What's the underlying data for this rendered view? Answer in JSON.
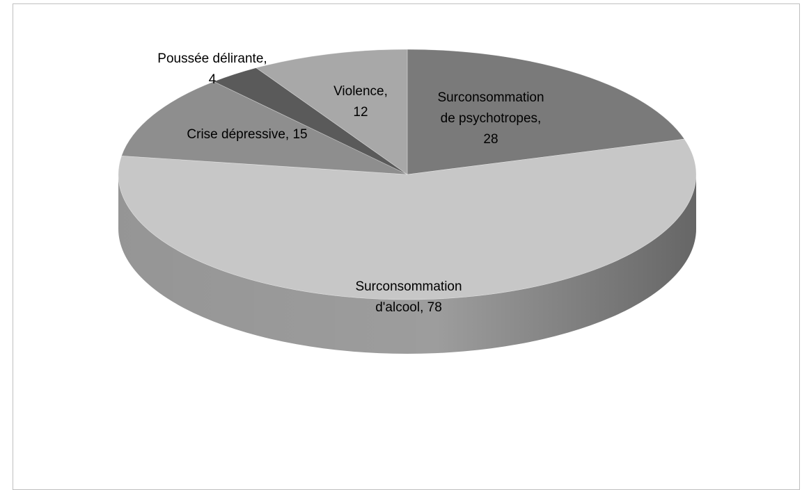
{
  "chart_data": {
    "type": "pie",
    "style": "3d",
    "title": "",
    "categories": [
      "Surconsommation de psychotropes",
      "Surconsommation d'alcool",
      "Crise dépressive",
      "Poussée délirante",
      "Violence"
    ],
    "values": [
      28,
      78,
      15,
      4,
      12
    ],
    "labels": [
      [
        "Surconsommation",
        "de psychotropes,",
        "28"
      ],
      [
        "Surconsommation",
        "d'alcool, 78"
      ],
      [
        "Crise dépressive, 15"
      ],
      [
        "Poussée délirante,",
        "4"
      ],
      [
        "Violence,",
        "12"
      ]
    ],
    "colors": [
      "#7a7a7a",
      "#c7c7c7",
      "#8e8e8e",
      "#5a5a5a",
      "#a8a8a8"
    ],
    "side_colors": [
      "#5f5f5f",
      "#9d9d9d",
      "#707070",
      "#474747",
      "#868686"
    ],
    "legend": "none"
  }
}
